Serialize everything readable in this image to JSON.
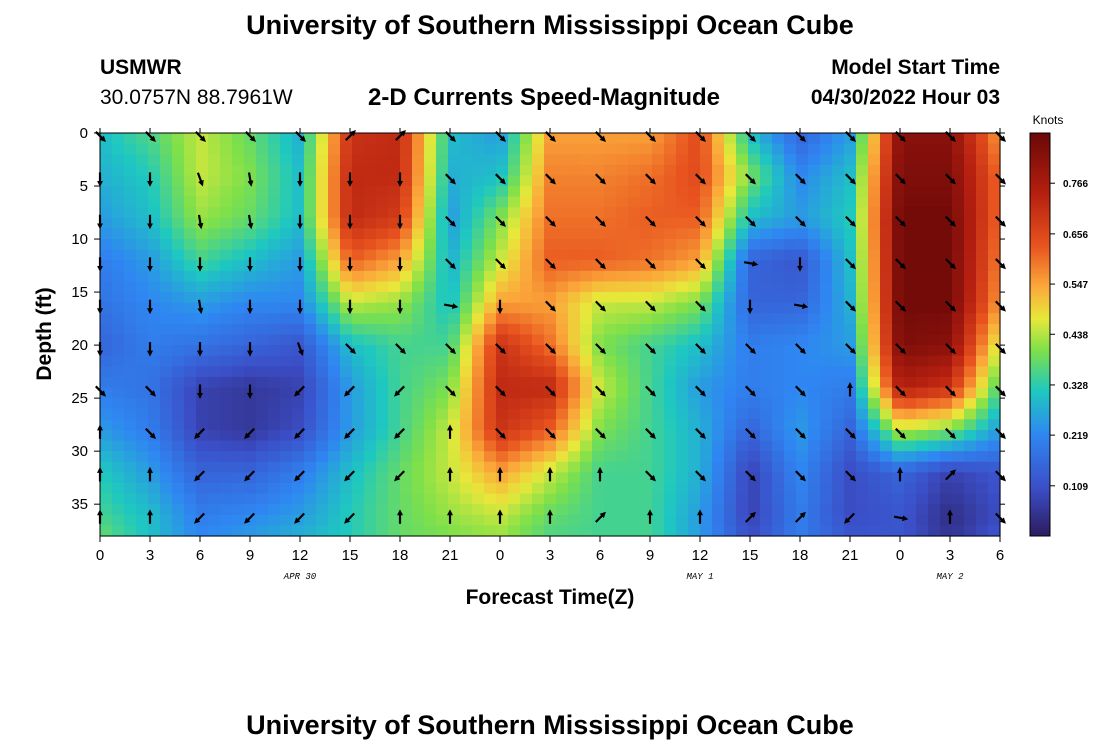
{
  "header": {
    "title": "University of Southern Mississippi Ocean Cube",
    "station": "USMWR",
    "coords": "30.0757N  88.7961W",
    "subtitle": "2-D Currents Speed-Magnitude",
    "model_start_label": "Model Start Time",
    "model_start_value": "04/30/2022 Hour 03",
    "footer_title": "University of Southern Mississippi Ocean Cube"
  },
  "chart_data": {
    "type": "heatmap",
    "title": "2-D Currents Speed-Magnitude",
    "xlabel": "Forecast Time(Z)",
    "ylabel": "Depth (ft)",
    "x_range": [
      0,
      54
    ],
    "x_ticks": [
      0,
      3,
      6,
      9,
      12,
      15,
      18,
      21,
      24,
      27,
      30,
      33,
      36,
      39,
      42,
      45,
      48,
      51,
      54
    ],
    "x_tick_labels": [
      "0",
      "3",
      "6",
      "9",
      "12",
      "15",
      "18",
      "21",
      "0",
      "3",
      "6",
      "9",
      "12",
      "15",
      "18",
      "21",
      "0",
      "3",
      "6"
    ],
    "date_labels": [
      {
        "at": 12,
        "text": "APR 30"
      },
      {
        "at": 36,
        "text": "MAY 1"
      },
      {
        "at": 51,
        "text": "MAY 2"
      }
    ],
    "y_range": [
      0,
      38
    ],
    "y_ticks": [
      0,
      5,
      10,
      15,
      20,
      25,
      30,
      35
    ],
    "y_tick_labels": [
      "0",
      "5",
      "10",
      "15",
      "20",
      "25",
      "30",
      "35"
    ],
    "colorbar": {
      "label": "Knots",
      "range": [
        0,
        0.875
      ],
      "ticks": [
        0.109,
        0.219,
        0.328,
        0.438,
        0.547,
        0.656,
        0.766
      ],
      "tick_labels": [
        "0.109",
        "0.219",
        "0.328",
        "0.438",
        "0.547",
        "0.656",
        "0.766"
      ]
    },
    "arrow_times": [
      0,
      3,
      6,
      9,
      12,
      15,
      18,
      21,
      24,
      27,
      30,
      33,
      36,
      39,
      42,
      45,
      48,
      51,
      54
    ],
    "arrow_depths": [
      0,
      4,
      8,
      12,
      16,
      20,
      24,
      28,
      32,
      36
    ],
    "speed_times": [
      0,
      3,
      6,
      9,
      12,
      15,
      18,
      21,
      24,
      27,
      30,
      33,
      36,
      39,
      42,
      45,
      48,
      51,
      54
    ],
    "speed_depths": [
      0,
      4,
      8,
      12,
      16,
      20,
      24,
      28,
      32,
      36,
      38
    ],
    "speed": [
      [
        0.3,
        0.36,
        0.45,
        0.38,
        0.28,
        0.7,
        0.72,
        0.3,
        0.25,
        0.55,
        0.55,
        0.55,
        0.65,
        0.3,
        0.15,
        0.25,
        0.82,
        0.82,
        0.55
      ],
      [
        0.28,
        0.32,
        0.45,
        0.4,
        0.3,
        0.72,
        0.72,
        0.28,
        0.3,
        0.58,
        0.58,
        0.6,
        0.65,
        0.4,
        0.22,
        0.3,
        0.84,
        0.84,
        0.6
      ],
      [
        0.25,
        0.3,
        0.42,
        0.38,
        0.3,
        0.72,
        0.68,
        0.25,
        0.4,
        0.6,
        0.6,
        0.62,
        0.62,
        0.3,
        0.25,
        0.32,
        0.86,
        0.86,
        0.6
      ],
      [
        0.2,
        0.25,
        0.35,
        0.3,
        0.25,
        0.62,
        0.55,
        0.28,
        0.45,
        0.62,
        0.62,
        0.6,
        0.55,
        0.15,
        0.12,
        0.3,
        0.86,
        0.86,
        0.58
      ],
      [
        0.18,
        0.22,
        0.25,
        0.22,
        0.22,
        0.45,
        0.42,
        0.3,
        0.55,
        0.55,
        0.45,
        0.45,
        0.4,
        0.15,
        0.15,
        0.28,
        0.86,
        0.86,
        0.55
      ],
      [
        0.15,
        0.2,
        0.18,
        0.15,
        0.12,
        0.3,
        0.35,
        0.35,
        0.7,
        0.6,
        0.4,
        0.35,
        0.3,
        0.2,
        0.22,
        0.25,
        0.84,
        0.82,
        0.45
      ],
      [
        0.2,
        0.18,
        0.08,
        0.06,
        0.08,
        0.25,
        0.35,
        0.4,
        0.72,
        0.72,
        0.45,
        0.35,
        0.25,
        0.2,
        0.22,
        0.2,
        0.75,
        0.7,
        0.35
      ],
      [
        0.25,
        0.2,
        0.08,
        0.06,
        0.1,
        0.25,
        0.35,
        0.45,
        0.7,
        0.62,
        0.4,
        0.35,
        0.28,
        0.15,
        0.25,
        0.15,
        0.45,
        0.4,
        0.25
      ],
      [
        0.32,
        0.25,
        0.15,
        0.15,
        0.2,
        0.3,
        0.38,
        0.45,
        0.55,
        0.45,
        0.35,
        0.35,
        0.28,
        0.08,
        0.22,
        0.1,
        0.15,
        0.08,
        0.12
      ],
      [
        0.35,
        0.3,
        0.2,
        0.22,
        0.25,
        0.32,
        0.38,
        0.42,
        0.45,
        0.38,
        0.35,
        0.35,
        0.25,
        0.08,
        0.2,
        0.1,
        0.12,
        0.04,
        0.1
      ],
      [
        0.38,
        0.3,
        0.22,
        0.25,
        0.28,
        0.32,
        0.38,
        0.4,
        0.42,
        0.36,
        0.35,
        0.35,
        0.25,
        0.1,
        0.2,
        0.12,
        0.12,
        0.05,
        0.12
      ]
    ],
    "direction_deg": [
      [
        135,
        135,
        135,
        135,
        135,
        45,
        45,
        135,
        135,
        135,
        135,
        135,
        135,
        135,
        135,
        135,
        135,
        135,
        135
      ],
      [
        180,
        180,
        160,
        170,
        180,
        180,
        180,
        135,
        135,
        135,
        135,
        135,
        135,
        135,
        135,
        135,
        135,
        135,
        135
      ],
      [
        180,
        180,
        170,
        170,
        180,
        180,
        180,
        135,
        135,
        135,
        135,
        135,
        135,
        135,
        135,
        135,
        135,
        135,
        135
      ],
      [
        180,
        180,
        180,
        180,
        180,
        180,
        180,
        135,
        135,
        135,
        135,
        135,
        135,
        100,
        180,
        135,
        135,
        135,
        135
      ],
      [
        180,
        180,
        170,
        180,
        180,
        180,
        180,
        100,
        180,
        135,
        135,
        135,
        135,
        180,
        100,
        135,
        135,
        135,
        135
      ],
      [
        180,
        180,
        180,
        180,
        160,
        135,
        135,
        135,
        135,
        135,
        135,
        135,
        135,
        135,
        135,
        135,
        135,
        135,
        135
      ],
      [
        135,
        135,
        180,
        180,
        225,
        225,
        225,
        135,
        135,
        135,
        135,
        135,
        135,
        135,
        135,
        0,
        135,
        135,
        135
      ],
      [
        0,
        135,
        225,
        225,
        225,
        225,
        225,
        0,
        135,
        135,
        135,
        135,
        135,
        135,
        135,
        135,
        135,
        135,
        135
      ],
      [
        0,
        0,
        225,
        225,
        225,
        225,
        225,
        0,
        0,
        0,
        0,
        135,
        135,
        135,
        135,
        135,
        0,
        45,
        135
      ],
      [
        0,
        0,
        225,
        225,
        225,
        225,
        0,
        0,
        0,
        0,
        45,
        0,
        0,
        45,
        45,
        225,
        100,
        0,
        135
      ]
    ]
  }
}
